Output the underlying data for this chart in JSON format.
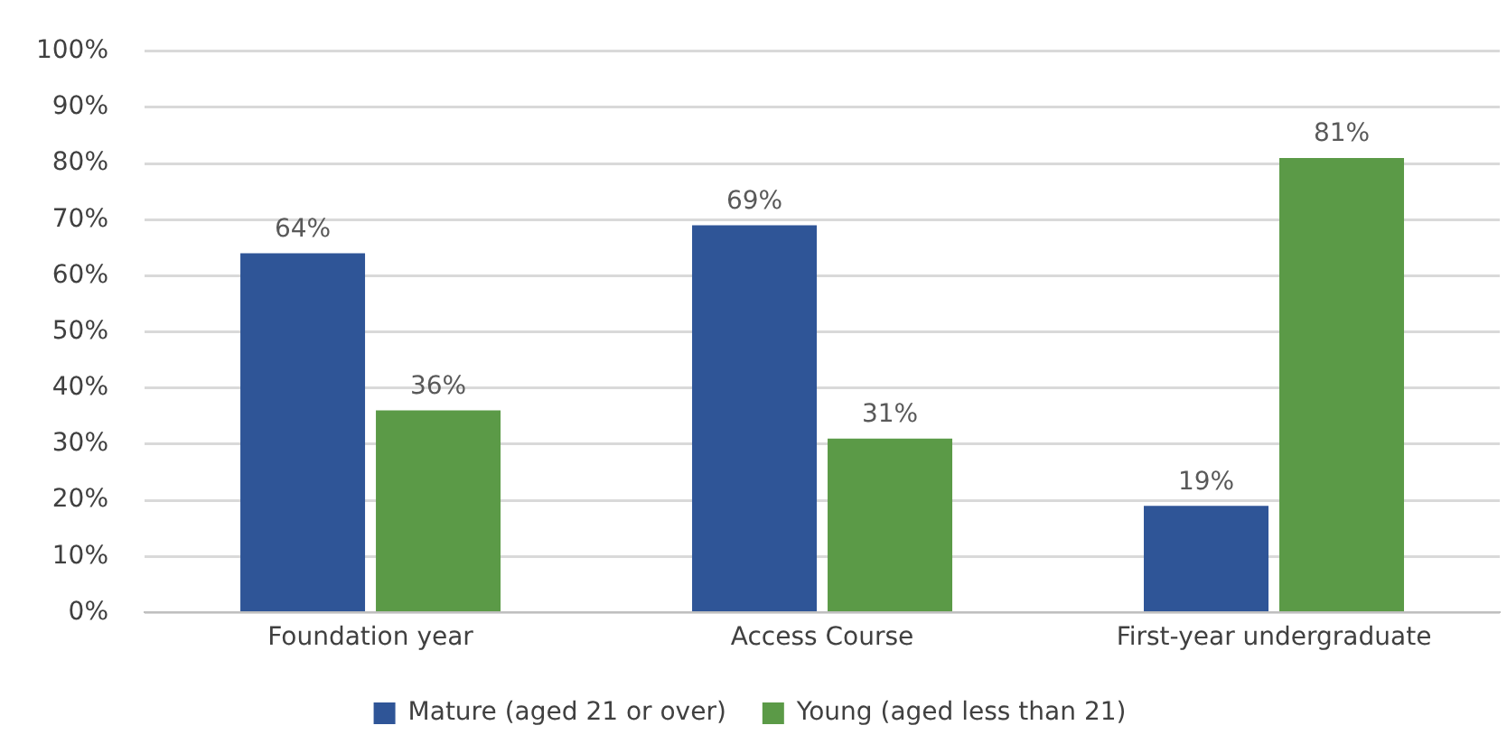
{
  "chart_data": {
    "type": "bar",
    "categories": [
      "Foundation year",
      "Access Course",
      "First-year undergraduate"
    ],
    "series": [
      {
        "name": "Mature (aged 21 or over)",
        "color": "#2f5597",
        "values": [
          64,
          69,
          19
        ]
      },
      {
        "name": "Young (aged less than 21)",
        "color": "#5b9a47",
        "values": [
          36,
          31,
          81
        ]
      }
    ],
    "ylim": [
      0,
      100
    ],
    "yticks": [
      {
        "value": 0,
        "label": "0%"
      },
      {
        "value": 10,
        "label": "10%"
      },
      {
        "value": 20,
        "label": "20%"
      },
      {
        "value": 30,
        "label": "30%"
      },
      {
        "value": 40,
        "label": "40%"
      },
      {
        "value": 50,
        "label": "50%"
      },
      {
        "value": 60,
        "label": "60%"
      },
      {
        "value": 70,
        "label": "70%"
      },
      {
        "value": 80,
        "label": "80%"
      },
      {
        "value": 90,
        "label": "90%"
      },
      {
        "value": 100,
        "label": "100%"
      }
    ],
    "value_labels": [
      [
        "64%",
        "69%",
        "19%"
      ],
      [
        "36%",
        "31%",
        "81%"
      ]
    ],
    "grid": "y",
    "legend": "bottom"
  }
}
